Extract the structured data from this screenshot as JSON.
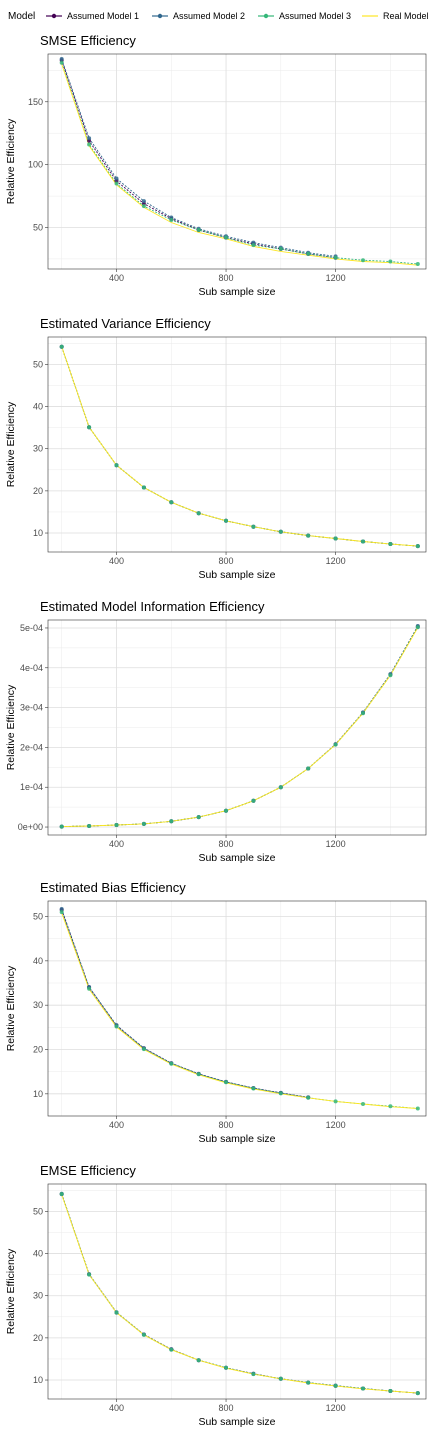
{
  "legend": {
    "title": "Model",
    "placement": "top",
    "entries": [
      {
        "label": "Assumed Model 1",
        "color": "#440154",
        "marker": "point"
      },
      {
        "label": "Assumed Model 2",
        "color": "#31688E",
        "marker": "point"
      },
      {
        "label": "Assumed Model 3",
        "color": "#35B779",
        "marker": "point"
      },
      {
        "label": "Real Model",
        "color": "#FDE725",
        "marker": "none"
      }
    ]
  },
  "chart_data": [
    {
      "type": "line",
      "title": "SMSE Efficiency",
      "xlabel": "Sub sample size",
      "ylabel": "Relative Efficiency",
      "xlim": [
        150,
        1530
      ],
      "ylim": [
        17,
        188
      ],
      "xticks": [
        400,
        800,
        1200
      ],
      "xtick_labels": [
        "400",
        "800",
        "1200"
      ],
      "yticks": [
        50,
        100,
        150
      ],
      "ytick_labels": [
        "50",
        "100",
        "150"
      ],
      "grid": true,
      "series": [
        {
          "name": "Assumed Model 1",
          "x": [
            200,
            300,
            400,
            500,
            600,
            700,
            800,
            900,
            1000,
            1100,
            1200
          ],
          "y": [
            183,
            119,
            87,
            69,
            57,
            48,
            42,
            37,
            33,
            29,
            26
          ]
        },
        {
          "name": "Assumed Model 2",
          "x": [
            200,
            300,
            400,
            500,
            600,
            700,
            800,
            900,
            1000,
            1100,
            1200
          ],
          "y": [
            184,
            121,
            89,
            71,
            58,
            49,
            43,
            38,
            34,
            30,
            27
          ]
        },
        {
          "name": "Assumed Model 3",
          "x": [
            200,
            300,
            400,
            500,
            600,
            700,
            800,
            900,
            1000,
            1100,
            1200,
            1300,
            1400,
            1500
          ],
          "y": [
            181,
            116,
            85,
            67,
            56,
            48,
            42,
            36,
            33,
            29,
            26,
            24,
            23,
            21
          ]
        },
        {
          "name": "Real Model",
          "x": [
            200,
            300,
            400,
            500,
            600,
            700,
            800,
            900,
            1000,
            1100,
            1200,
            1300,
            1400,
            1500
          ],
          "y": [
            180,
            115,
            84,
            66,
            54,
            46,
            41,
            35,
            31,
            28,
            25,
            23,
            22,
            20
          ]
        }
      ]
    },
    {
      "type": "line",
      "title": "Estimated Variance Efficiency",
      "xlabel": "Sub sample size",
      "ylabel": "Relative Efficiency",
      "xlim": [
        150,
        1530
      ],
      "ylim": [
        5.5,
        56.5
      ],
      "xticks": [
        400,
        800,
        1200
      ],
      "xtick_labels": [
        "400",
        "800",
        "1200"
      ],
      "yticks": [
        10,
        20,
        30,
        40,
        50
      ],
      "ytick_labels": [
        "10",
        "20",
        "30",
        "40",
        "50"
      ],
      "grid": true,
      "series": [
        {
          "name": "Assumed Model 1",
          "x": [
            200,
            300,
            400,
            500,
            600,
            700,
            800,
            900,
            1000,
            1100,
            1200,
            1300,
            1400,
            1500
          ],
          "y": [
            54.2,
            35.1,
            26.1,
            20.8,
            17.3,
            14.7,
            12.9,
            11.5,
            10.3,
            9.4,
            8.7,
            8.0,
            7.4,
            6.9
          ]
        },
        {
          "name": "Assumed Model 2",
          "x": [
            200,
            300,
            400,
            500,
            600,
            700,
            800,
            900,
            1000,
            1100,
            1200,
            1300,
            1400,
            1500
          ],
          "y": [
            54.2,
            35.1,
            26.1,
            20.8,
            17.3,
            14.7,
            12.9,
            11.5,
            10.3,
            9.4,
            8.7,
            8.0,
            7.4,
            6.9
          ]
        },
        {
          "name": "Assumed Model 3",
          "x": [
            200,
            300,
            400,
            500,
            600,
            700,
            800,
            900,
            1000,
            1100,
            1200,
            1300,
            1400,
            1500
          ],
          "y": [
            54.2,
            35.1,
            26.1,
            20.8,
            17.3,
            14.7,
            12.9,
            11.5,
            10.3,
            9.4,
            8.7,
            8.0,
            7.4,
            6.9
          ]
        },
        {
          "name": "Real Model",
          "x": [
            200,
            300,
            400,
            500,
            600,
            700,
            800,
            900,
            1000,
            1100,
            1200,
            1300,
            1400,
            1500
          ],
          "y": [
            54.2,
            35.1,
            26.1,
            20.8,
            17.3,
            14.7,
            12.9,
            11.5,
            10.3,
            9.4,
            8.7,
            8.0,
            7.4,
            6.9
          ]
        }
      ]
    },
    {
      "type": "line",
      "title": "Estimated Model Information Efficiency",
      "xlabel": "Sub sample size",
      "ylabel": "Relative Efficiency",
      "xlim": [
        150,
        1530
      ],
      "ylim": [
        -2e-05,
        0.00052
      ],
      "xticks": [
        400,
        800,
        1200
      ],
      "xtick_labels": [
        "400",
        "800",
        "1200"
      ],
      "yticks": [
        0,
        0.0001,
        0.0002,
        0.0003,
        0.0004,
        0.0005
      ],
      "ytick_labels": [
        "0e+00",
        "1e-04",
        "2e-04",
        "3e-04",
        "4e-04",
        "5e-04"
      ],
      "grid": true,
      "series": [
        {
          "name": "Assumed Model 1",
          "x": [
            200,
            300,
            400,
            500,
            600,
            700,
            800,
            900,
            1000,
            1100,
            1200,
            1300,
            1400,
            1500
          ],
          "y": [
            1e-06,
            2.5e-06,
            5e-06,
            8e-06,
            1.45e-05,
            2.5e-05,
            4.1e-05,
            6.6e-05,
            0.0001,
            0.000147,
            0.000208,
            0.000287,
            0.000383,
            0.000503
          ]
        },
        {
          "name": "Assumed Model 2",
          "x": [
            200,
            300,
            400,
            500,
            600,
            700,
            800,
            900,
            1000,
            1100,
            1200,
            1300,
            1400,
            1500
          ],
          "y": [
            1e-06,
            2.5e-06,
            5e-06,
            8e-06,
            1.45e-05,
            2.5e-05,
            4.1e-05,
            6.6e-05,
            0.0001,
            0.000147,
            0.000208,
            0.000288,
            0.000384,
            0.000505
          ]
        },
        {
          "name": "Assumed Model 3",
          "x": [
            200,
            300,
            400,
            500,
            600,
            700,
            800,
            900,
            1000,
            1100,
            1200,
            1300,
            1400,
            1500
          ],
          "y": [
            1e-06,
            2.5e-06,
            5e-06,
            8e-06,
            1.45e-05,
            2.5e-05,
            4.1e-05,
            6.6e-05,
            0.0001,
            0.000147,
            0.000207,
            0.000286,
            0.000381,
            0.000502
          ]
        },
        {
          "name": "Real Model",
          "x": [
            200,
            300,
            400,
            500,
            600,
            700,
            800,
            900,
            1000,
            1100,
            1200,
            1300,
            1400,
            1500
          ],
          "y": [
            1e-06,
            2.5e-06,
            5e-06,
            8e-06,
            1.45e-05,
            2.5e-05,
            4.1e-05,
            6.6e-05,
            0.0001,
            0.000147,
            0.000207,
            0.000286,
            0.000381,
            0.000501
          ]
        }
      ]
    },
    {
      "type": "line",
      "title": "Estimated Bias Efficiency",
      "xlabel": "Sub sample size",
      "ylabel": "Relative Efficiency",
      "xlim": [
        150,
        1530
      ],
      "ylim": [
        5.0,
        53.5
      ],
      "xticks": [
        400,
        800,
        1200
      ],
      "xtick_labels": [
        "400",
        "800",
        "1200"
      ],
      "yticks": [
        10,
        20,
        30,
        40,
        50
      ],
      "ytick_labels": [
        "10",
        "20",
        "30",
        "40",
        "50"
      ],
      "grid": true,
      "series": [
        {
          "name": "Assumed Model 1",
          "x": [
            200,
            300,
            400,
            500,
            600,
            700,
            800,
            900,
            1000,
            1100
          ],
          "y": [
            51.5,
            34.0,
            25.4,
            20.3,
            16.9,
            14.5,
            12.7,
            11.3,
            10.2,
            9.2
          ]
        },
        {
          "name": "Assumed Model 2",
          "x": [
            200,
            300,
            400,
            500,
            600,
            700,
            800,
            900,
            1000,
            1100
          ],
          "y": [
            51.7,
            34.1,
            25.5,
            20.3,
            16.9,
            14.5,
            12.7,
            11.3,
            10.2,
            9.2
          ]
        },
        {
          "name": "Assumed Model 3",
          "x": [
            200,
            300,
            400,
            500,
            600,
            700,
            800,
            900,
            1000,
            1100,
            1200,
            1300,
            1400,
            1500
          ],
          "y": [
            51.0,
            33.7,
            25.2,
            20.1,
            16.8,
            14.4,
            12.6,
            11.2,
            10.1,
            9.1,
            8.3,
            7.7,
            7.2,
            6.7
          ]
        },
        {
          "name": "Real Model",
          "x": [
            200,
            300,
            400,
            500,
            600,
            700,
            800,
            900,
            1000,
            1100,
            1200,
            1300,
            1400,
            1500
          ],
          "y": [
            50.8,
            33.6,
            25.1,
            20.0,
            16.7,
            14.3,
            12.5,
            11.1,
            10.0,
            9.1,
            8.3,
            7.7,
            7.1,
            6.7
          ]
        }
      ]
    },
    {
      "type": "line",
      "title": "EMSE Efficiency",
      "xlabel": "Sub sample size",
      "ylabel": "Relative Efficiency",
      "xlim": [
        150,
        1530
      ],
      "ylim": [
        5.5,
        56.5
      ],
      "xticks": [
        400,
        800,
        1200
      ],
      "xtick_labels": [
        "400",
        "800",
        "1200"
      ],
      "yticks": [
        10,
        20,
        30,
        40,
        50
      ],
      "ytick_labels": [
        "10",
        "20",
        "30",
        "40",
        "50"
      ],
      "grid": true,
      "series": [
        {
          "name": "Assumed Model 1",
          "x": [
            200,
            300,
            400,
            500,
            600,
            700,
            800,
            900,
            1000,
            1100,
            1200,
            1300,
            1400,
            1500
          ],
          "y": [
            54.1,
            35.1,
            26.0,
            20.8,
            17.3,
            14.7,
            12.9,
            11.5,
            10.3,
            9.4,
            8.6,
            8.0,
            7.4,
            6.9
          ]
        },
        {
          "name": "Assumed Model 2",
          "x": [
            200,
            300,
            400,
            500,
            600,
            700,
            800,
            900,
            1000,
            1100,
            1200,
            1300,
            1400,
            1500
          ],
          "y": [
            54.2,
            35.1,
            26.1,
            20.8,
            17.3,
            14.7,
            12.9,
            11.5,
            10.3,
            9.4,
            8.7,
            8.0,
            7.4,
            6.9
          ]
        },
        {
          "name": "Assumed Model 3",
          "x": [
            200,
            300,
            400,
            500,
            600,
            700,
            800,
            900,
            1000,
            1100,
            1200,
            1300,
            1400,
            1500
          ],
          "y": [
            54.1,
            35.0,
            26.0,
            20.7,
            17.2,
            14.7,
            12.9,
            11.4,
            10.3,
            9.4,
            8.6,
            8.0,
            7.4,
            6.9
          ]
        },
        {
          "name": "Real Model",
          "x": [
            200,
            300,
            400,
            500,
            600,
            700,
            800,
            900,
            1000,
            1100,
            1200,
            1300,
            1400,
            1500
          ],
          "y": [
            54.0,
            35.0,
            26.0,
            20.7,
            17.2,
            14.7,
            12.8,
            11.4,
            10.3,
            9.3,
            8.6,
            7.9,
            7.4,
            6.9
          ]
        }
      ]
    }
  ]
}
